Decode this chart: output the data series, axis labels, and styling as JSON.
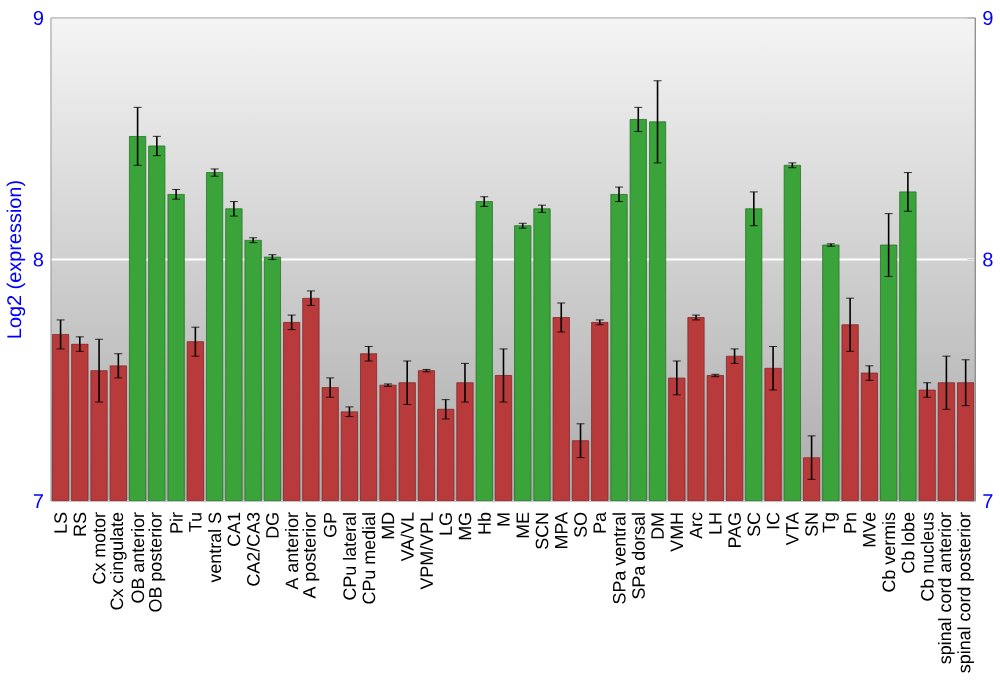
{
  "chart_data": {
    "type": "bar",
    "ylabel": "Log2 (expression)",
    "categories": [
      "LS",
      "RS",
      "Cx motor",
      "Cx cingulate",
      "OB anterior",
      "OB posterior",
      "Pir",
      "Tu",
      "ventral S",
      "CA1",
      "CA2/CA3",
      "DG",
      "A anterior",
      "A posterior",
      "GP",
      "CPu lateral",
      "CPu medial",
      "MD",
      "VA/VL",
      "VPM/VPL",
      "LG",
      "MG",
      "Hb",
      "M",
      "ME",
      "SCN",
      "MPA",
      "SO",
      "Pa",
      "SPa ventral",
      "SPa dorsal",
      "DM",
      "VMH",
      "Arc",
      "LH",
      "PAG",
      "SC",
      "IC",
      "VTA",
      "SN",
      "Tg",
      "Pn",
      "MVe",
      "Cb vermis",
      "Cb lobe",
      "Cb nucleus",
      "spinal cord anterior",
      "spinal cord posterior"
    ],
    "values": [
      7.69,
      7.65,
      7.54,
      7.56,
      8.51,
      8.47,
      8.27,
      7.66,
      8.36,
      8.21,
      8.08,
      8.01,
      7.74,
      7.84,
      7.47,
      7.37,
      7.61,
      7.48,
      7.49,
      7.54,
      7.38,
      7.49,
      8.24,
      7.52,
      8.14,
      8.21,
      7.76,
      7.25,
      7.74,
      8.27,
      8.58,
      8.57,
      7.51,
      7.76,
      7.52,
      7.6,
      8.21,
      7.55,
      8.39,
      7.18,
      8.06,
      7.73,
      7.53,
      8.06,
      8.28,
      7.46,
      7.49,
      7.49
    ],
    "errors": [
      0.06,
      0.03,
      0.13,
      0.05,
      0.12,
      0.04,
      0.02,
      0.06,
      0.015,
      0.03,
      0.01,
      0.01,
      0.03,
      0.03,
      0.04,
      0.02,
      0.03,
      0.005,
      0.09,
      0.005,
      0.04,
      0.08,
      0.02,
      0.11,
      0.01,
      0.015,
      0.06,
      0.07,
      0.01,
      0.03,
      0.05,
      0.17,
      0.07,
      0.01,
      0.005,
      0.03,
      0.07,
      0.09,
      0.01,
      0.09,
      0.005,
      0.11,
      0.03,
      0.13,
      0.08,
      0.03,
      0.11,
      0.095
    ],
    "colors": [
      "#b83a3a",
      "#b83a3a",
      "#b83a3a",
      "#b83a3a",
      "#3aa33a",
      "#3aa33a",
      "#3aa33a",
      "#b83a3a",
      "#3aa33a",
      "#3aa33a",
      "#3aa33a",
      "#3aa33a",
      "#b83a3a",
      "#b83a3a",
      "#b83a3a",
      "#b83a3a",
      "#b83a3a",
      "#b83a3a",
      "#b83a3a",
      "#b83a3a",
      "#b83a3a",
      "#b83a3a",
      "#3aa33a",
      "#b83a3a",
      "#3aa33a",
      "#3aa33a",
      "#b83a3a",
      "#b83a3a",
      "#b83a3a",
      "#3aa33a",
      "#3aa33a",
      "#3aa33a",
      "#b83a3a",
      "#b83a3a",
      "#b83a3a",
      "#b83a3a",
      "#3aa33a",
      "#b83a3a",
      "#3aa33a",
      "#b83a3a",
      "#3aa33a",
      "#b83a3a",
      "#b83a3a",
      "#3aa33a",
      "#3aa33a",
      "#b83a3a",
      "#b83a3a",
      "#b83a3a"
    ],
    "ylim": [
      7,
      9
    ],
    "yticks": [
      7,
      8,
      9
    ],
    "y2lim": [
      7,
      9
    ],
    "y2ticks": [
      7,
      8,
      9
    ],
    "grid": "y"
  }
}
